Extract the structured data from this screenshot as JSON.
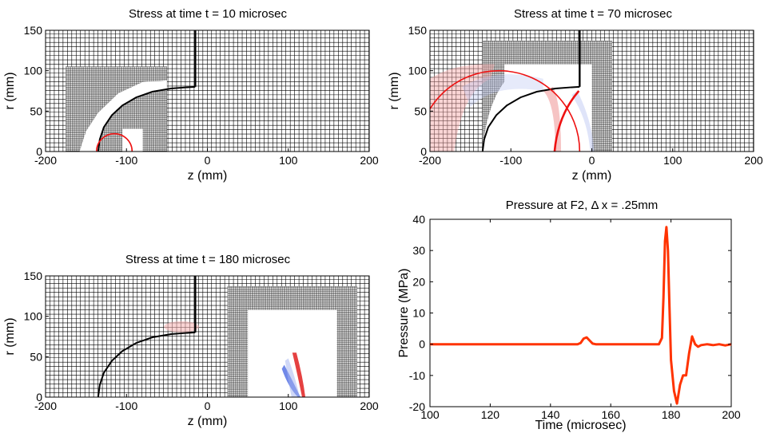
{
  "chart_data": [
    {
      "type": "heatmap",
      "title": "Stress at time t = 10 microsec",
      "xlabel": "z (mm)",
      "ylabel": "r (mm)",
      "xlim": [
        -200,
        200
      ],
      "ylim": [
        0,
        150
      ],
      "xticks": [
        "-200",
        "-100",
        "0",
        "100",
        "200"
      ],
      "yticks": [
        "0",
        "50",
        "100",
        "150"
      ],
      "grid": true,
      "wavefront_center_z": -115,
      "wavefront_radius": 22,
      "refined_region": {
        "z": [
          -175,
          -50
        ],
        "r": [
          0,
          105
        ]
      }
    },
    {
      "type": "heatmap",
      "title": "Stress at time t = 70 microsec",
      "xlabel": "z (mm)",
      "ylabel": "r (mm)",
      "xlim": [
        -200,
        200
      ],
      "ylim": [
        0,
        150
      ],
      "xticks": [
        "-200",
        "-100",
        "0",
        "100",
        "200"
      ],
      "yticks": [
        "0",
        "50",
        "100",
        "150"
      ],
      "grid": true,
      "wavefront_center_z": -115,
      "wavefront_radius": 100,
      "refined_region": {
        "z": [
          -135,
          25
        ],
        "r": [
          0,
          137
        ]
      }
    },
    {
      "type": "heatmap",
      "title": "Stress at time t = 180 microsec",
      "xlabel": "z (mm)",
      "ylabel": "r (mm)",
      "xlim": [
        -200,
        200
      ],
      "ylim": [
        0,
        150
      ],
      "xticks": [
        "-200",
        "-100",
        "0",
        "100",
        "200"
      ],
      "yticks": [
        "0",
        "50",
        "100",
        "150"
      ],
      "grid": true,
      "refined_region": {
        "z": [
          25,
          185
        ],
        "r": [
          0,
          137
        ]
      }
    },
    {
      "type": "line",
      "title": "Pressure at F2, Δ x = .25mm",
      "xlabel": "Time (microsec)",
      "ylabel": "Pressure (MPa)",
      "xlim": [
        100,
        200
      ],
      "ylim": [
        -20,
        40
      ],
      "xticks": [
        "100",
        "120",
        "140",
        "160",
        "180",
        "200"
      ],
      "yticks": [
        "-20",
        "-10",
        "0",
        "10",
        "20",
        "30",
        "40"
      ],
      "color": "#ff3300",
      "series": [
        {
          "x": [
            100,
            140,
            149,
            150,
            151,
            152,
            153,
            154,
            155,
            160,
            170,
            176,
            177,
            177.5,
            178,
            178.5,
            179,
            179.5,
            180,
            181,
            182,
            183,
            184,
            185,
            186,
            187,
            188,
            189,
            190,
            192,
            194,
            196,
            198,
            200
          ],
          "y": [
            0,
            0,
            0,
            0.4,
            1.8,
            2.2,
            1.2,
            0.2,
            0,
            0,
            0,
            0,
            2,
            15,
            33,
            37.5,
            30,
            12,
            -5,
            -15,
            -19,
            -13,
            -10,
            -10,
            -3,
            2.5,
            0,
            -0.8,
            -0.3,
            0,
            -0.3,
            0,
            -0.4,
            0
          ]
        }
      ]
    }
  ]
}
